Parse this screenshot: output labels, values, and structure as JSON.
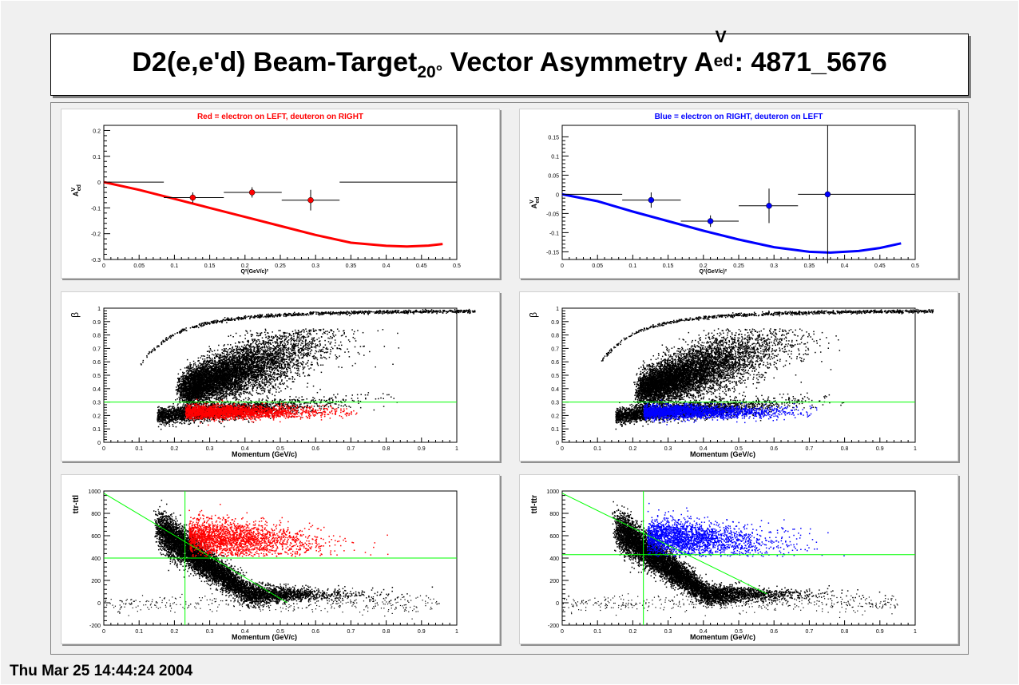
{
  "title": {
    "prefix": "D2(e,e'd) Beam-Target",
    "sub": "20°",
    "mid": " Vector Asymmetry A",
    "sup": "V",
    "subscript2": "ed",
    "suffix": ": 4871_5676"
  },
  "date": "Thu Mar 25 14:44:24 2004",
  "colors": {
    "red": "#ff0000",
    "blue": "#0000ff",
    "green": "#00ff00",
    "black": "#000000"
  },
  "chart_data": [
    {
      "id": "asym-left",
      "type": "scatter",
      "title": "Red = electron on LEFT, deuteron on RIGHT",
      "title_color": "#ff0000",
      "xlabel": "Q²(GeV/c)²",
      "ylabel": "A^V_ed",
      "xlim": [
        0,
        0.5
      ],
      "ylim": [
        -0.3,
        0.22
      ],
      "xticks": [
        0,
        0.05,
        0.1,
        0.15,
        0.2,
        0.25,
        0.3,
        0.35,
        0.4,
        0.45,
        0.5
      ],
      "xtick_labels": [
        "0",
        "0.05",
        "0.1",
        "0.15",
        "0.2",
        "0.25",
        "0.3",
        "0.35",
        "0.4",
        "0.45",
        "0.5"
      ],
      "yticks": [
        -0.3,
        -0.2,
        -0.1,
        0,
        0.1,
        0.2
      ],
      "ytick_labels": [
        "-0.3",
        "-0.2",
        "-0.1",
        "0",
        "0.1",
        "0.2"
      ],
      "points": [
        {
          "x": 0.126,
          "y": -0.06,
          "xerr": [
            0.085,
            0.17
          ],
          "yerr": 0.02
        },
        {
          "x": 0.21,
          "y": -0.04,
          "xerr": [
            0.17,
            0.252
          ],
          "yerr": 0.02
        },
        {
          "x": 0.293,
          "y": -0.07,
          "xerr": [
            0.252,
            0.334
          ],
          "yerr": 0.04
        }
      ],
      "flat_segments": [
        [
          0,
          0.085,
          0
        ],
        [
          0.334,
          0.5,
          0
        ]
      ],
      "curve": [
        [
          0,
          0
        ],
        [
          0.05,
          -0.03
        ],
        [
          0.1,
          -0.065
        ],
        [
          0.15,
          -0.1
        ],
        [
          0.2,
          -0.135
        ],
        [
          0.25,
          -0.17
        ],
        [
          0.3,
          -0.205
        ],
        [
          0.35,
          -0.235
        ],
        [
          0.4,
          -0.247
        ],
        [
          0.43,
          -0.25
        ],
        [
          0.46,
          -0.246
        ],
        [
          0.48,
          -0.24
        ]
      ],
      "color": "#ff0000"
    },
    {
      "id": "asym-right",
      "type": "scatter",
      "title": "Blue = electron on RIGHT, deuteron on LEFT",
      "title_color": "#0000ff",
      "xlabel": "Q²(GeV/c)²",
      "ylabel": "A^V_ed",
      "xlim": [
        0,
        0.5
      ],
      "ylim": [
        -0.17,
        0.18
      ],
      "xticks": [
        0,
        0.05,
        0.1,
        0.15,
        0.2,
        0.25,
        0.3,
        0.35,
        0.4,
        0.45,
        0.5
      ],
      "xtick_labels": [
        "0",
        "0.05",
        "0.1",
        "0.15",
        "0.2",
        "0.25",
        "0.3",
        "0.35",
        "0.4",
        "0.45",
        "0.5"
      ],
      "yticks": [
        -0.15,
        -0.1,
        -0.05,
        0,
        0.05,
        0.1,
        0.15
      ],
      "ytick_labels": [
        "-0.15",
        "-0.1",
        "-0.05",
        "0",
        "0.05",
        "0.1",
        "0.15"
      ],
      "points": [
        {
          "x": 0.126,
          "y": -0.015,
          "xerr": [
            0.085,
            0.168
          ],
          "yerr": 0.02
        },
        {
          "x": 0.21,
          "y": -0.07,
          "xerr": [
            0.168,
            0.25
          ],
          "yerr": 0.015
        },
        {
          "x": 0.293,
          "y": -0.03,
          "xerr": [
            0.25,
            0.334
          ],
          "yerr": 0.045
        },
        {
          "x": 0.376,
          "y": 0.0,
          "xerr": [
            0.334,
            0.5
          ],
          "yerr": 0.18
        }
      ],
      "flat_segments": [
        [
          0,
          0.085,
          0
        ]
      ],
      "curve": [
        [
          0,
          0
        ],
        [
          0.05,
          -0.018
        ],
        [
          0.1,
          -0.045
        ],
        [
          0.15,
          -0.07
        ],
        [
          0.2,
          -0.095
        ],
        [
          0.25,
          -0.118
        ],
        [
          0.3,
          -0.138
        ],
        [
          0.35,
          -0.15
        ],
        [
          0.38,
          -0.152
        ],
        [
          0.42,
          -0.148
        ],
        [
          0.45,
          -0.14
        ],
        [
          0.48,
          -0.128
        ]
      ],
      "color": "#0000ff"
    },
    {
      "id": "beta-left",
      "type": "scatter",
      "xlabel": "Momentum (GeV/c)",
      "ylabel": "β",
      "xlim": [
        0,
        1
      ],
      "ylim": [
        0,
        1
      ],
      "xticks": [
        0,
        0.1,
        0.2,
        0.3,
        0.4,
        0.5,
        0.6,
        0.7,
        0.8,
        0.9,
        1
      ],
      "xtick_labels": [
        "0",
        "0.1",
        "0.2",
        "0.3",
        "0.4",
        "0.5",
        "0.6",
        "0.7",
        "0.8",
        "0.9",
        "1"
      ],
      "yticks": [
        0,
        0.1,
        0.2,
        0.3,
        0.4,
        0.5,
        0.6,
        0.7,
        0.8,
        0.9,
        1
      ],
      "ytick_labels": [
        "0",
        "0.1",
        "0.2",
        "0.3",
        "0.4",
        "0.5",
        "0.6",
        "0.7",
        "0.8",
        "0.9",
        "1"
      ],
      "cut_lines": [
        {
          "orient": "h",
          "value": 0.3
        }
      ],
      "highlight_color": "#ff0000"
    },
    {
      "id": "beta-right",
      "type": "scatter",
      "xlabel": "Momentum (GeV/c)",
      "ylabel": "β",
      "xlim": [
        0,
        1
      ],
      "ylim": [
        0,
        1
      ],
      "xticks": [
        0,
        0.1,
        0.2,
        0.3,
        0.4,
        0.5,
        0.6,
        0.7,
        0.8,
        0.9,
        1
      ],
      "xtick_labels": [
        "0",
        "0.1",
        "0.2",
        "0.3",
        "0.4",
        "0.5",
        "0.6",
        "0.7",
        "0.8",
        "0.9",
        "1"
      ],
      "yticks": [
        0,
        0.1,
        0.2,
        0.3,
        0.4,
        0.5,
        0.6,
        0.7,
        0.8,
        0.9,
        1
      ],
      "ytick_labels": [
        "0",
        "0.1",
        "0.2",
        "0.3",
        "0.4",
        "0.5",
        "0.6",
        "0.7",
        "0.8",
        "0.9",
        "1"
      ],
      "cut_lines": [
        {
          "orient": "h",
          "value": 0.3
        }
      ],
      "highlight_color": "#0000ff"
    },
    {
      "id": "tof-left",
      "type": "scatter",
      "xlabel": "Momentum (GeV/c)",
      "ylabel": "ttr-ttl",
      "xlim": [
        0,
        1
      ],
      "ylim": [
        -200,
        1000
      ],
      "xticks": [
        0,
        0.1,
        0.2,
        0.3,
        0.4,
        0.5,
        0.6,
        0.7,
        0.8,
        0.9,
        1
      ],
      "xtick_labels": [
        "0",
        "0.1",
        "0.2",
        "0.3",
        "0.4",
        "0.5",
        "0.6",
        "0.7",
        "0.8",
        "0.9",
        "1"
      ],
      "yticks": [
        -200,
        0,
        200,
        400,
        600,
        800,
        1000
      ],
      "ytick_labels": [
        "-200",
        "0",
        "200",
        "400",
        "600",
        "800",
        "1000"
      ],
      "cut_lines": [
        {
          "orient": "h",
          "value": 400
        },
        {
          "orient": "v",
          "value": 0.23
        },
        {
          "orient": "d",
          "from": [
            0,
            980
          ],
          "to": [
            0.52,
            0
          ]
        }
      ],
      "highlight_color": "#ff0000"
    },
    {
      "id": "tof-right",
      "type": "scatter",
      "xlabel": "Momentum (GeV/c)",
      "ylabel": "ttl-ttr",
      "xlim": [
        0,
        1
      ],
      "ylim": [
        -200,
        1000
      ],
      "xticks": [
        0,
        0.1,
        0.2,
        0.3,
        0.4,
        0.5,
        0.6,
        0.7,
        0.8,
        0.9,
        1
      ],
      "xtick_labels": [
        "0",
        "0.1",
        "0.2",
        "0.3",
        "0.4",
        "0.5",
        "0.6",
        "0.7",
        "0.8",
        "0.9",
        "1"
      ],
      "yticks": [
        -200,
        0,
        200,
        400,
        600,
        800,
        1000
      ],
      "ytick_labels": [
        "-200",
        "0",
        "200",
        "400",
        "600",
        "800",
        "1000"
      ],
      "cut_lines": [
        {
          "orient": "h",
          "value": 430
        },
        {
          "orient": "v",
          "value": 0.23
        },
        {
          "orient": "d",
          "from": [
            0,
            980
          ],
          "to": [
            0.58,
            80
          ]
        }
      ],
      "highlight_color": "#0000ff"
    }
  ]
}
